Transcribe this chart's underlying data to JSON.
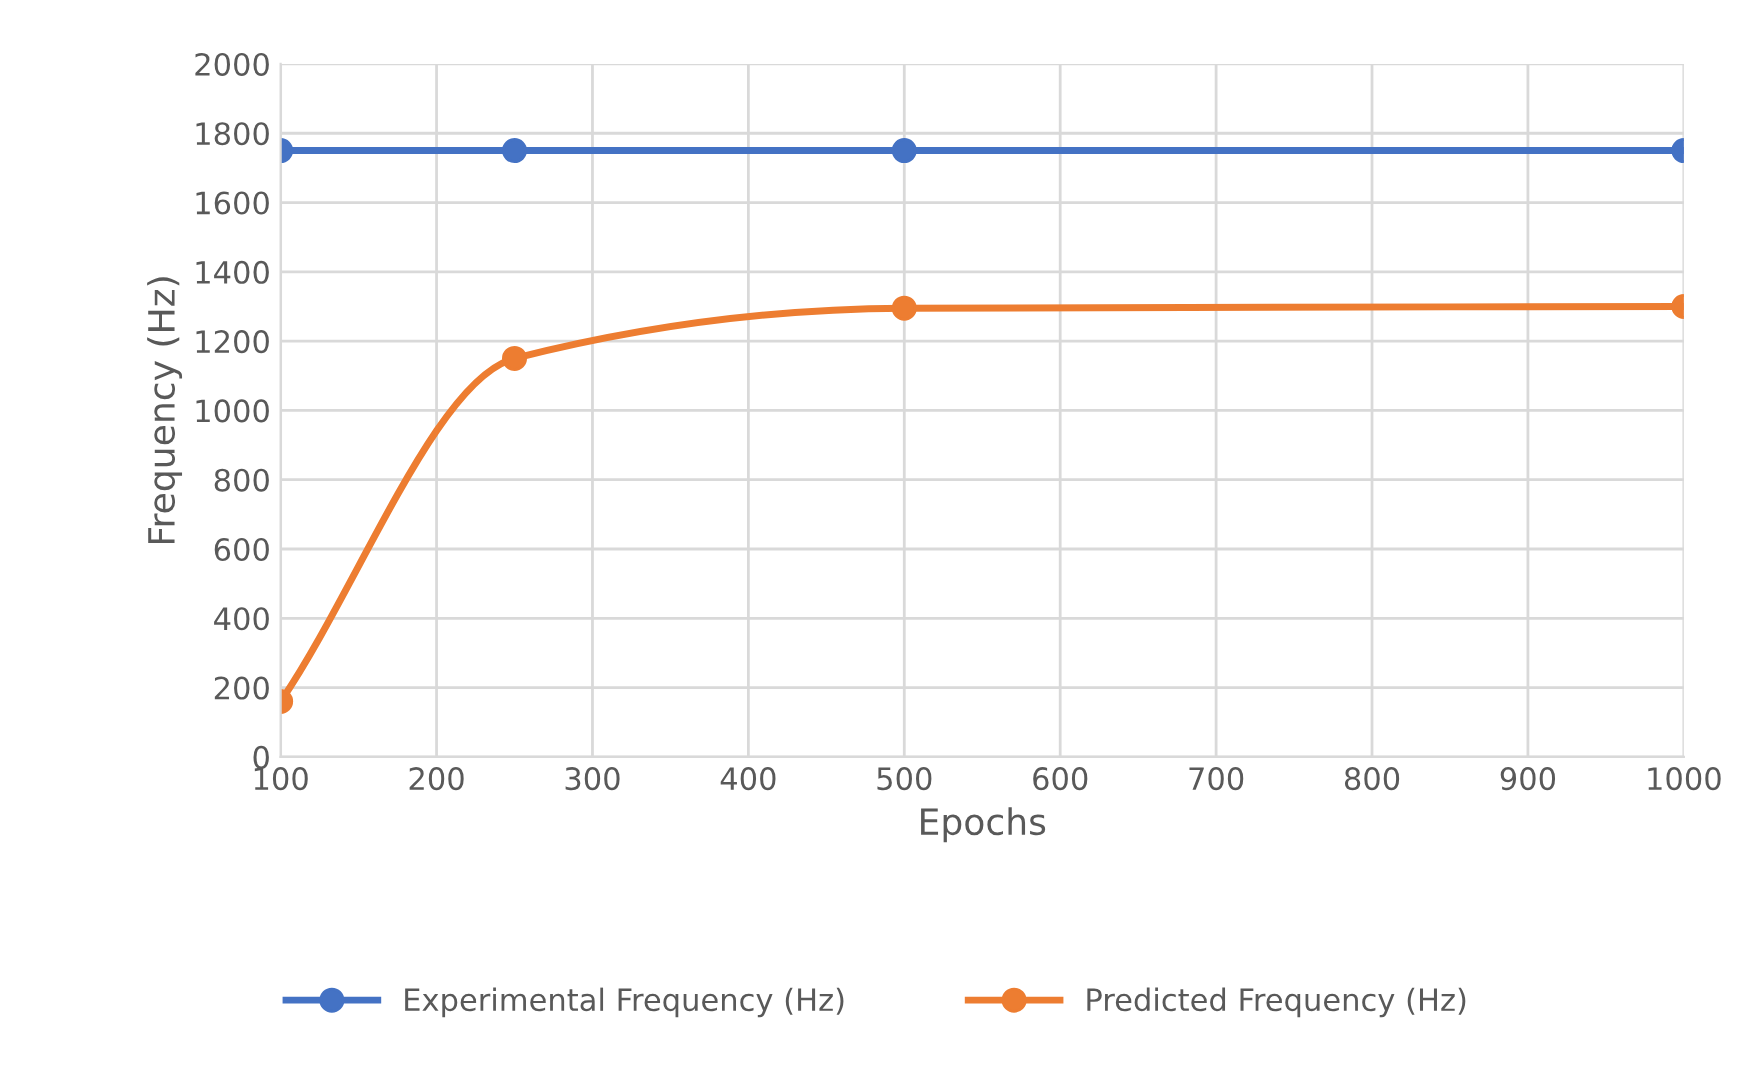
{
  "chart_data": {
    "type": "line",
    "xlabel": "Epochs",
    "ylabel": "Frequency (Hz)",
    "x": [
      100,
      250,
      500,
      1000
    ],
    "series": [
      {
        "name": "Experimental Frequency (Hz)",
        "color": "#4472c4",
        "values": [
          1750,
          1750,
          1750,
          1750
        ]
      },
      {
        "name": "Predicted Frequency (Hz)",
        "color": "#ed7d31",
        "values": [
          160,
          1150,
          1295,
          1300
        ]
      }
    ],
    "xlim": [
      100,
      1000
    ],
    "xticks": [
      100,
      200,
      300,
      400,
      500,
      600,
      700,
      800,
      900,
      1000
    ],
    "ylim": [
      0,
      2000
    ],
    "yticks": [
      0,
      200,
      400,
      600,
      800,
      1000,
      1200,
      1400,
      1600,
      1800,
      2000
    ],
    "grid": true,
    "legend": "bottom",
    "marker": "circle",
    "line_style": "solid"
  }
}
